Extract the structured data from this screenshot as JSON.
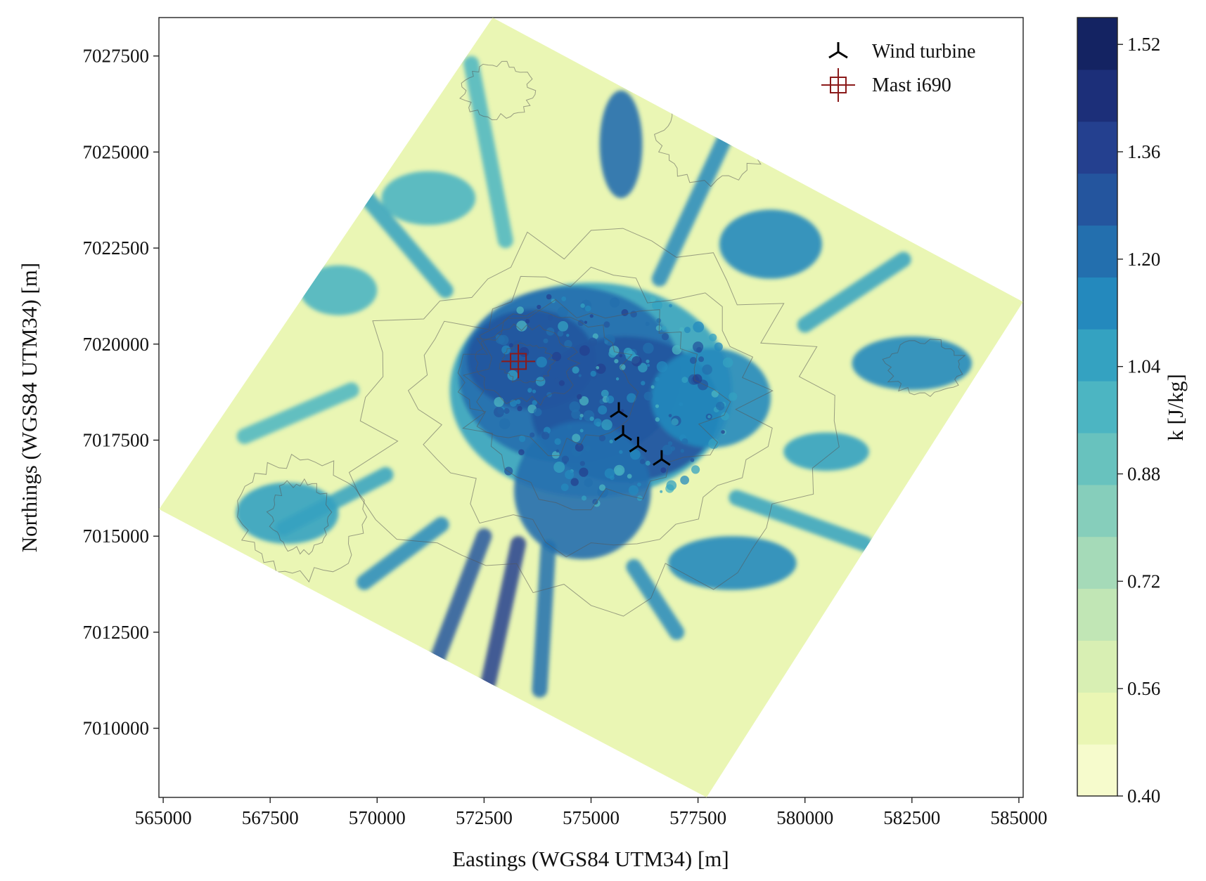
{
  "chart_data": {
    "type": "heatmap",
    "title": "",
    "xlabel": "Eastings (WGS84 UTM34) [m]",
    "ylabel": "Northings (WGS84 UTM34) [m]",
    "colorbar_label": "k [J/kg]",
    "xlim": [
      564900,
      585100
    ],
    "ylim": [
      7008200,
      7028500
    ],
    "x_ticks": [
      "565000",
      "567500",
      "570000",
      "572500",
      "575000",
      "577500",
      "580000",
      "582500",
      "585000"
    ],
    "y_ticks": [
      "7010000",
      "7012500",
      "7015000",
      "7017500",
      "7020000",
      "7022500",
      "7025000",
      "7027500"
    ],
    "colorbar_ticks": [
      "0.40",
      "0.56",
      "0.72",
      "0.88",
      "1.04",
      "1.20",
      "1.36",
      "1.52"
    ],
    "colorbar_range": [
      0.4,
      1.56
    ],
    "colormap": "YlGnBu",
    "domain_corners": [
      [
        572700,
        7028500
      ],
      [
        585100,
        7021100
      ],
      [
        577700,
        7008200
      ],
      [
        564900,
        7015700
      ]
    ],
    "contour_lines": "terrain elevation, grey",
    "legend": {
      "placement": "top-right",
      "entries": [
        {
          "label": "Wind turbine",
          "marker": "tri-down",
          "color": "#000000"
        },
        {
          "label": "Mast i690",
          "marker": "square-cross",
          "color": "#8b1a1a"
        }
      ]
    },
    "turbines": [
      [
        575650,
        7018250
      ],
      [
        575750,
        7017650
      ],
      [
        576100,
        7017350
      ],
      [
        576650,
        7017000
      ]
    ],
    "mast": [
      573300,
      7019550
    ],
    "grid": false
  }
}
